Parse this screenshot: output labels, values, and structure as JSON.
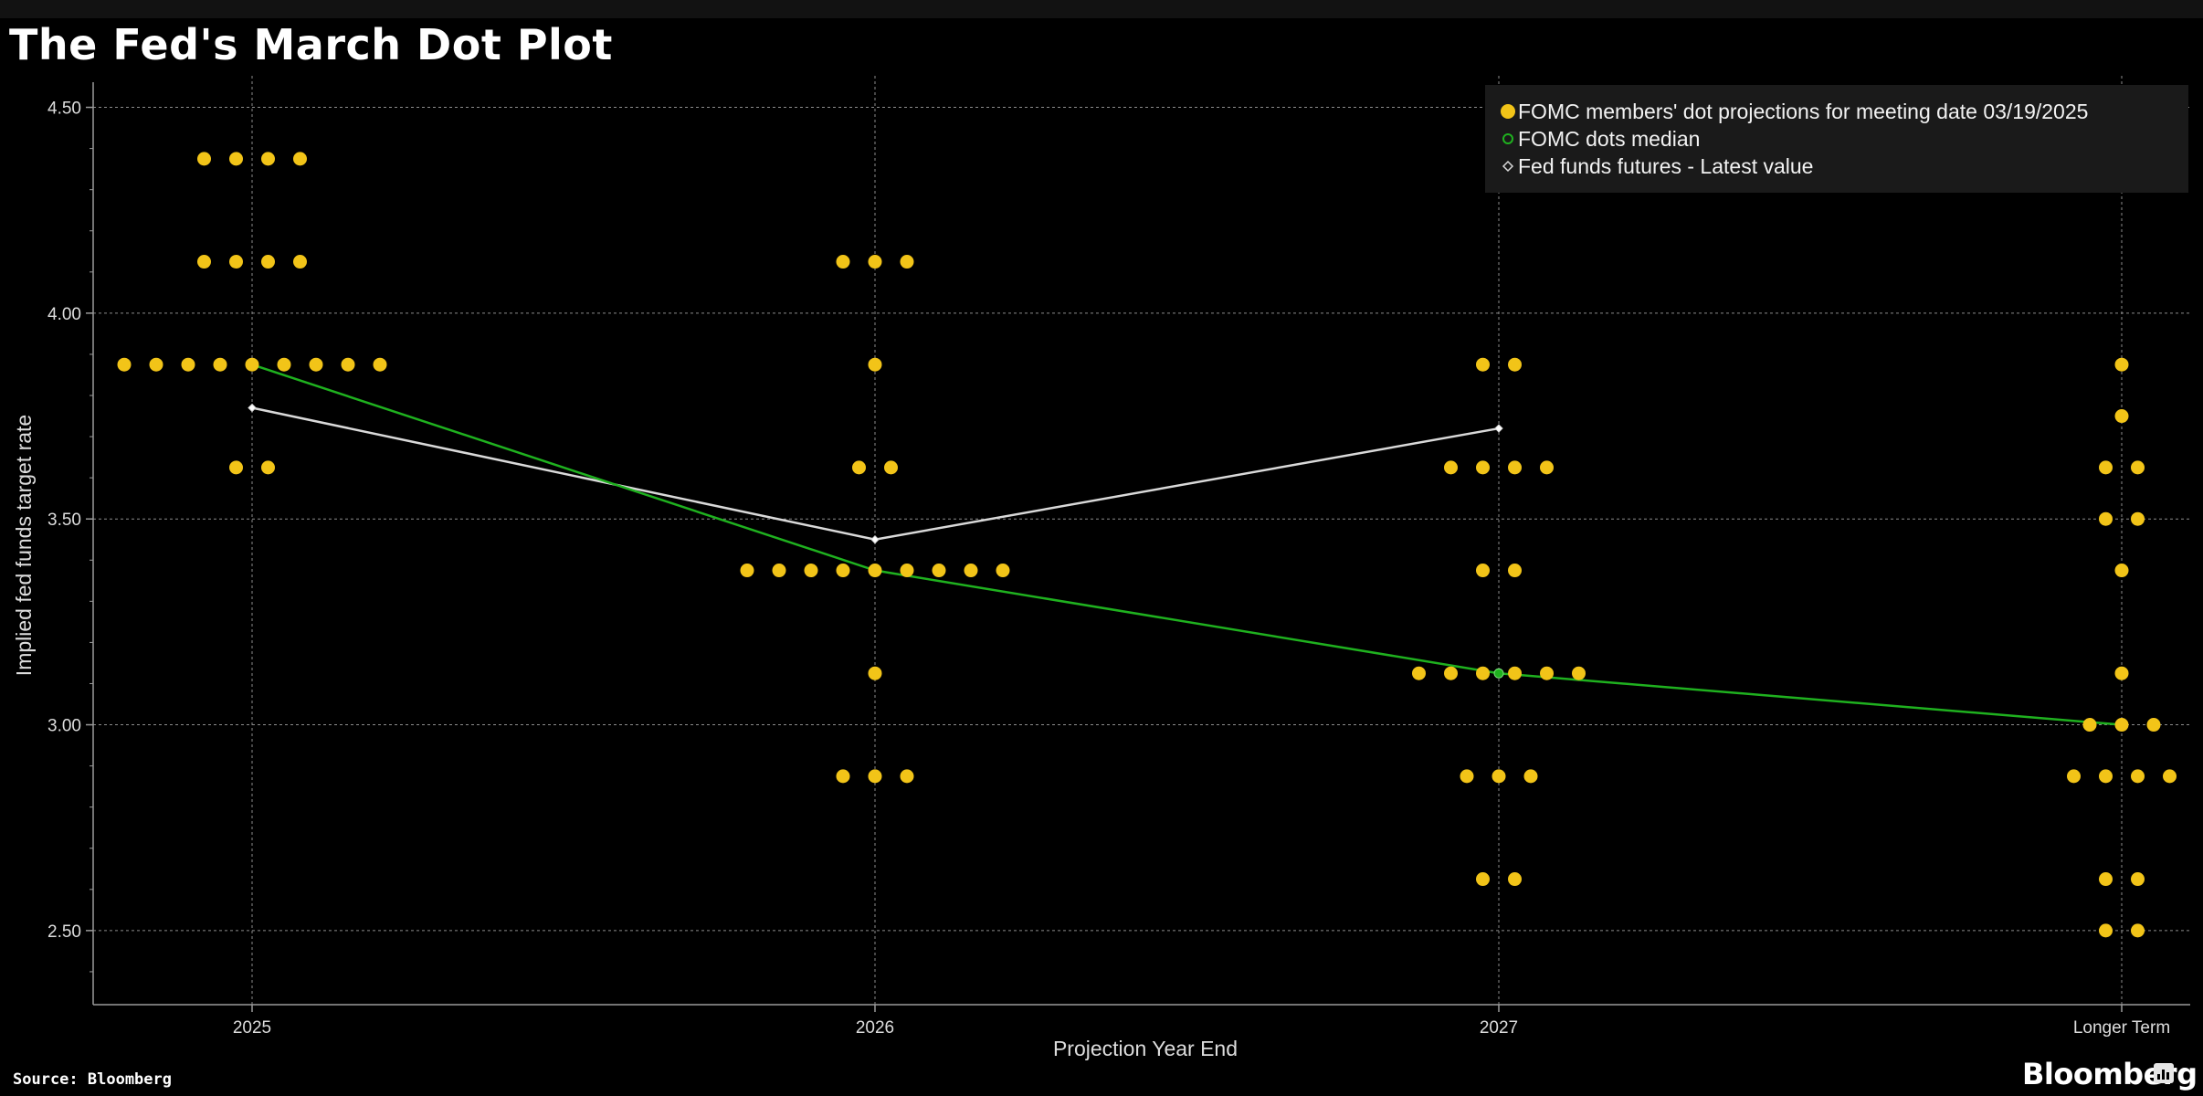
{
  "title": "The Fed's March Dot Plot",
  "source": "Source: Bloomberg",
  "brand": "Bloomberg",
  "colors": {
    "background": "#000000",
    "dots": "#f2c418",
    "median": "#1fb11f",
    "futures": "#d9d9d9",
    "grid": "#8c8c8c",
    "legend_bg": "#1a1a1a"
  },
  "chart_data": {
    "type": "scatter",
    "title": "The Fed's March Dot Plot",
    "xlabel": "Projection Year End",
    "ylabel": "Implied fed funds target rate",
    "categories": [
      "2025",
      "2026",
      "2027",
      "Longer Term"
    ],
    "ylim": [
      2.32,
      4.55
    ],
    "yticks": [
      2.5,
      3.0,
      3.5,
      4.0,
      4.5
    ],
    "ytick_labels": [
      "2.50",
      "3.00",
      "3.50",
      "4.00",
      "4.50"
    ],
    "grid": true,
    "legend_position": "top-right",
    "legend": [
      "FOMC members' dot projections for meeting date 03/19/2025",
      "FOMC dots median",
      "Fed funds futures - Latest value"
    ],
    "series": [
      {
        "name": "FOMC members' dot projections for meeting date 03/19/2025",
        "kind": "dots",
        "groups": [
          {
            "category": "2025",
            "rates": [
              {
                "rate": 4.375,
                "count": 4
              },
              {
                "rate": 4.125,
                "count": 4
              },
              {
                "rate": 3.875,
                "count": 9
              },
              {
                "rate": 3.625,
                "count": 2
              }
            ]
          },
          {
            "category": "2026",
            "rates": [
              {
                "rate": 4.125,
                "count": 3
              },
              {
                "rate": 3.875,
                "count": 1
              },
              {
                "rate": 3.625,
                "count": 2
              },
              {
                "rate": 3.375,
                "count": 9
              },
              {
                "rate": 3.125,
                "count": 1
              },
              {
                "rate": 2.875,
                "count": 3
              }
            ]
          },
          {
            "category": "2027",
            "rates": [
              {
                "rate": 3.875,
                "count": 2
              },
              {
                "rate": 3.625,
                "count": 4
              },
              {
                "rate": 3.375,
                "count": 2
              },
              {
                "rate": 3.125,
                "count": 6
              },
              {
                "rate": 2.875,
                "count": 3
              },
              {
                "rate": 2.625,
                "count": 2
              }
            ]
          },
          {
            "category": "Longer Term",
            "rates": [
              {
                "rate": 3.875,
                "count": 1
              },
              {
                "rate": 3.75,
                "count": 1
              },
              {
                "rate": 3.625,
                "count": 2
              },
              {
                "rate": 3.5,
                "count": 2
              },
              {
                "rate": 3.375,
                "count": 1
              },
              {
                "rate": 3.125,
                "count": 1
              },
              {
                "rate": 3.0,
                "count": 3
              },
              {
                "rate": 2.875,
                "count": 4
              },
              {
                "rate": 2.625,
                "count": 2
              },
              {
                "rate": 2.5,
                "count": 2
              }
            ]
          }
        ]
      },
      {
        "name": "FOMC dots median",
        "kind": "line",
        "x": [
          "2025",
          "2026",
          "2027",
          "Longer Term"
        ],
        "values": [
          3.875,
          3.375,
          3.125,
          3.0
        ]
      },
      {
        "name": "Fed funds futures - Latest value",
        "kind": "line",
        "x": [
          "2025",
          "2026",
          "2027"
        ],
        "values": [
          3.77,
          3.45,
          3.72
        ]
      }
    ]
  }
}
